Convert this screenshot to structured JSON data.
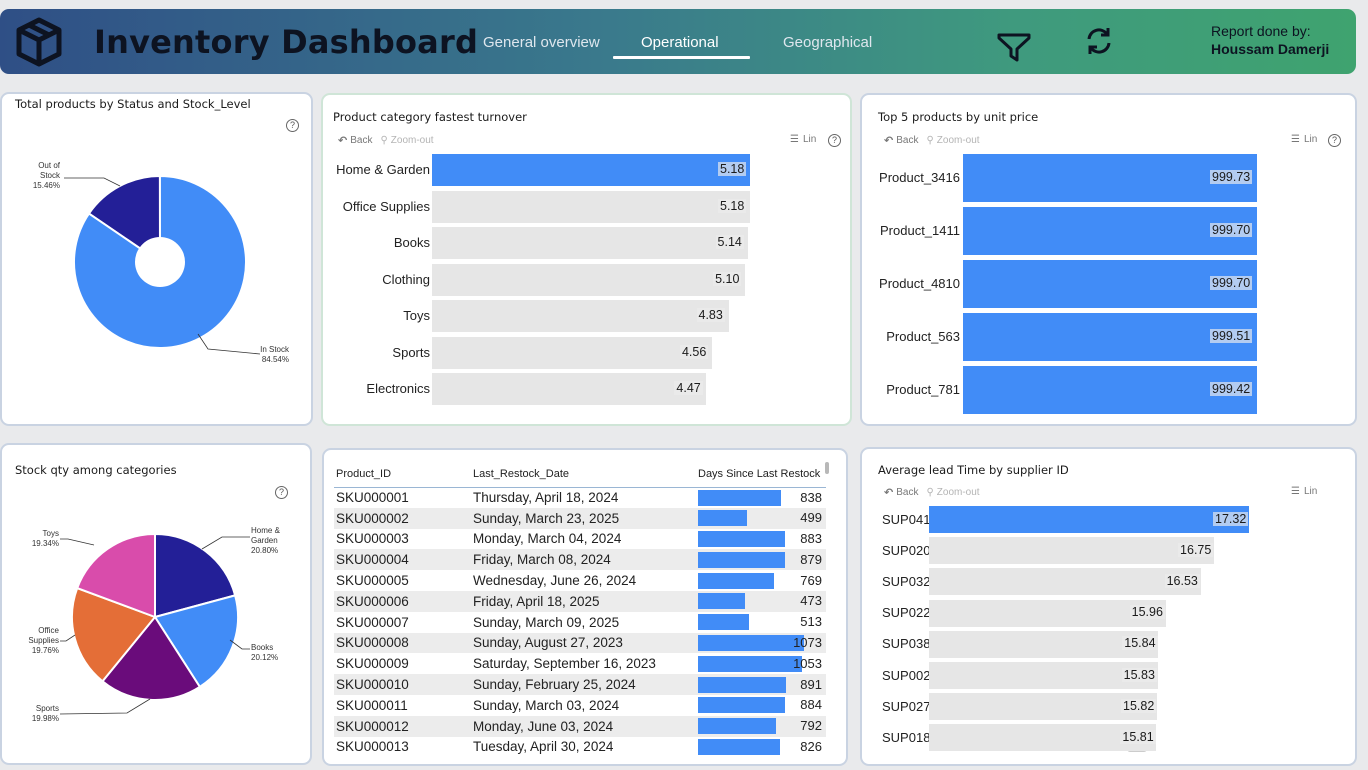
{
  "header": {
    "title": "Inventory Dashboard",
    "tabs": [
      "General overview",
      "Operational",
      "Geographical"
    ],
    "active_tab": "Operational",
    "report_by_label": "Report done by:",
    "report_by_name": "Houssam Damerji",
    "icons": [
      "box-logo-icon",
      "filter-icon",
      "refresh-icon"
    ],
    "gradient": [
      "#2f4f86",
      "#3fa36f"
    ]
  },
  "colors": {
    "bar": "#418cf7",
    "track": "#e6e6e6"
  },
  "toolbar": {
    "back": "Back",
    "zoom_out": "Zoom-out",
    "lin": "Lin",
    "help": "?"
  },
  "status_chart": {
    "title": "Total products by Status and Stock_Level",
    "chart_data": {
      "type": "pie",
      "categories": [
        "Out of Stock",
        "In Stock"
      ],
      "values": [
        15.46,
        84.54
      ],
      "labels": [
        "Out of\nStock\n15.46%",
        "In Stock\n84.54%"
      ],
      "colors": [
        "#231f97",
        "#418cf7"
      ]
    }
  },
  "turnover_chart": {
    "title": "Product category fastest turnover",
    "chart_data": {
      "type": "bar",
      "categories": [
        "Home & Garden",
        "Office Supplies",
        "Books",
        "Clothing",
        "Toys",
        "Sports",
        "Electronics"
      ],
      "values": [
        5.18,
        5.18,
        5.14,
        5.1,
        4.83,
        4.56,
        4.47
      ],
      "value_labels": [
        "5.18",
        "5.18",
        "5.14",
        "5.10",
        "4.83",
        "4.56",
        "4.47"
      ],
      "highlighted": 0
    }
  },
  "price_chart": {
    "title": "Top 5 products by unit price",
    "chart_data": {
      "type": "bar",
      "categories": [
        "Product_3416",
        "Product_1411",
        "Product_4810",
        "Product_563",
        "Product_781"
      ],
      "values": [
        999.73,
        999.7,
        999.7,
        999.51,
        999.42
      ],
      "value_labels": [
        "999.73",
        "999.70",
        "999.70",
        "999.51",
        "999.42"
      ]
    }
  },
  "stock_chart": {
    "title": "Stock qty among categories",
    "chart_data": {
      "type": "pie",
      "categories": [
        "Home & Garden",
        "Books",
        "Sports",
        "Office Supplies",
        "Toys"
      ],
      "values": [
        20.8,
        20.12,
        19.98,
        19.76,
        19.34
      ],
      "labels": [
        "Home &\nGarden\n20.80%",
        "Books\n20.12%",
        "Sports\n19.98%",
        "Office\nSupplies\n19.76%",
        "Toys\n19.34%"
      ],
      "colors": [
        "#231f97",
        "#418cf7",
        "#6a0c7b",
        "#e46e37",
        "#d94cab"
      ]
    }
  },
  "restock_table": {
    "columns": [
      "Product_ID",
      "Last_Restock_Date",
      "Days Since Last Restock"
    ],
    "rows": [
      [
        "SKU000001",
        "Thursday, April 18, 2024",
        "838"
      ],
      [
        "SKU000002",
        "Sunday, March 23, 2025",
        "499"
      ],
      [
        "SKU000003",
        "Monday, March 04, 2024",
        "883"
      ],
      [
        "SKU000004",
        "Friday, March 08, 2024",
        "879"
      ],
      [
        "SKU000005",
        "Wednesday, June 26, 2024",
        "769"
      ],
      [
        "SKU000006",
        "Friday, April 18, 2025",
        "473"
      ],
      [
        "SKU000007",
        "Sunday, March 09, 2025",
        "513"
      ],
      [
        "SKU000008",
        "Sunday, August 27, 2023",
        "1073"
      ],
      [
        "SKU000009",
        "Saturday, September 16, 2023",
        "1053"
      ],
      [
        "SKU000010",
        "Sunday, February 25, 2024",
        "891"
      ],
      [
        "SKU000011",
        "Sunday, March 03, 2024",
        "884"
      ],
      [
        "SKU000012",
        "Monday, June 03, 2024",
        "792"
      ],
      [
        "SKU000013",
        "Tuesday, April 30, 2024",
        "826"
      ]
    ],
    "bar_max": 1073
  },
  "lead_chart": {
    "title": "Average lead Time by supplier ID",
    "chart_data": {
      "type": "bar",
      "categories": [
        "SUP041",
        "SUP020",
        "SUP032",
        "SUP022",
        "SUP038",
        "SUP002",
        "SUP027",
        "SUP018"
      ],
      "values": [
        17.32,
        16.75,
        16.53,
        15.96,
        15.84,
        15.83,
        15.82,
        15.81
      ],
      "value_labels": [
        "17.32",
        "16.75",
        "16.53",
        "15.96",
        "15.84",
        "15.83",
        "15.82",
        "15.81"
      ],
      "highlighted": 0
    }
  }
}
